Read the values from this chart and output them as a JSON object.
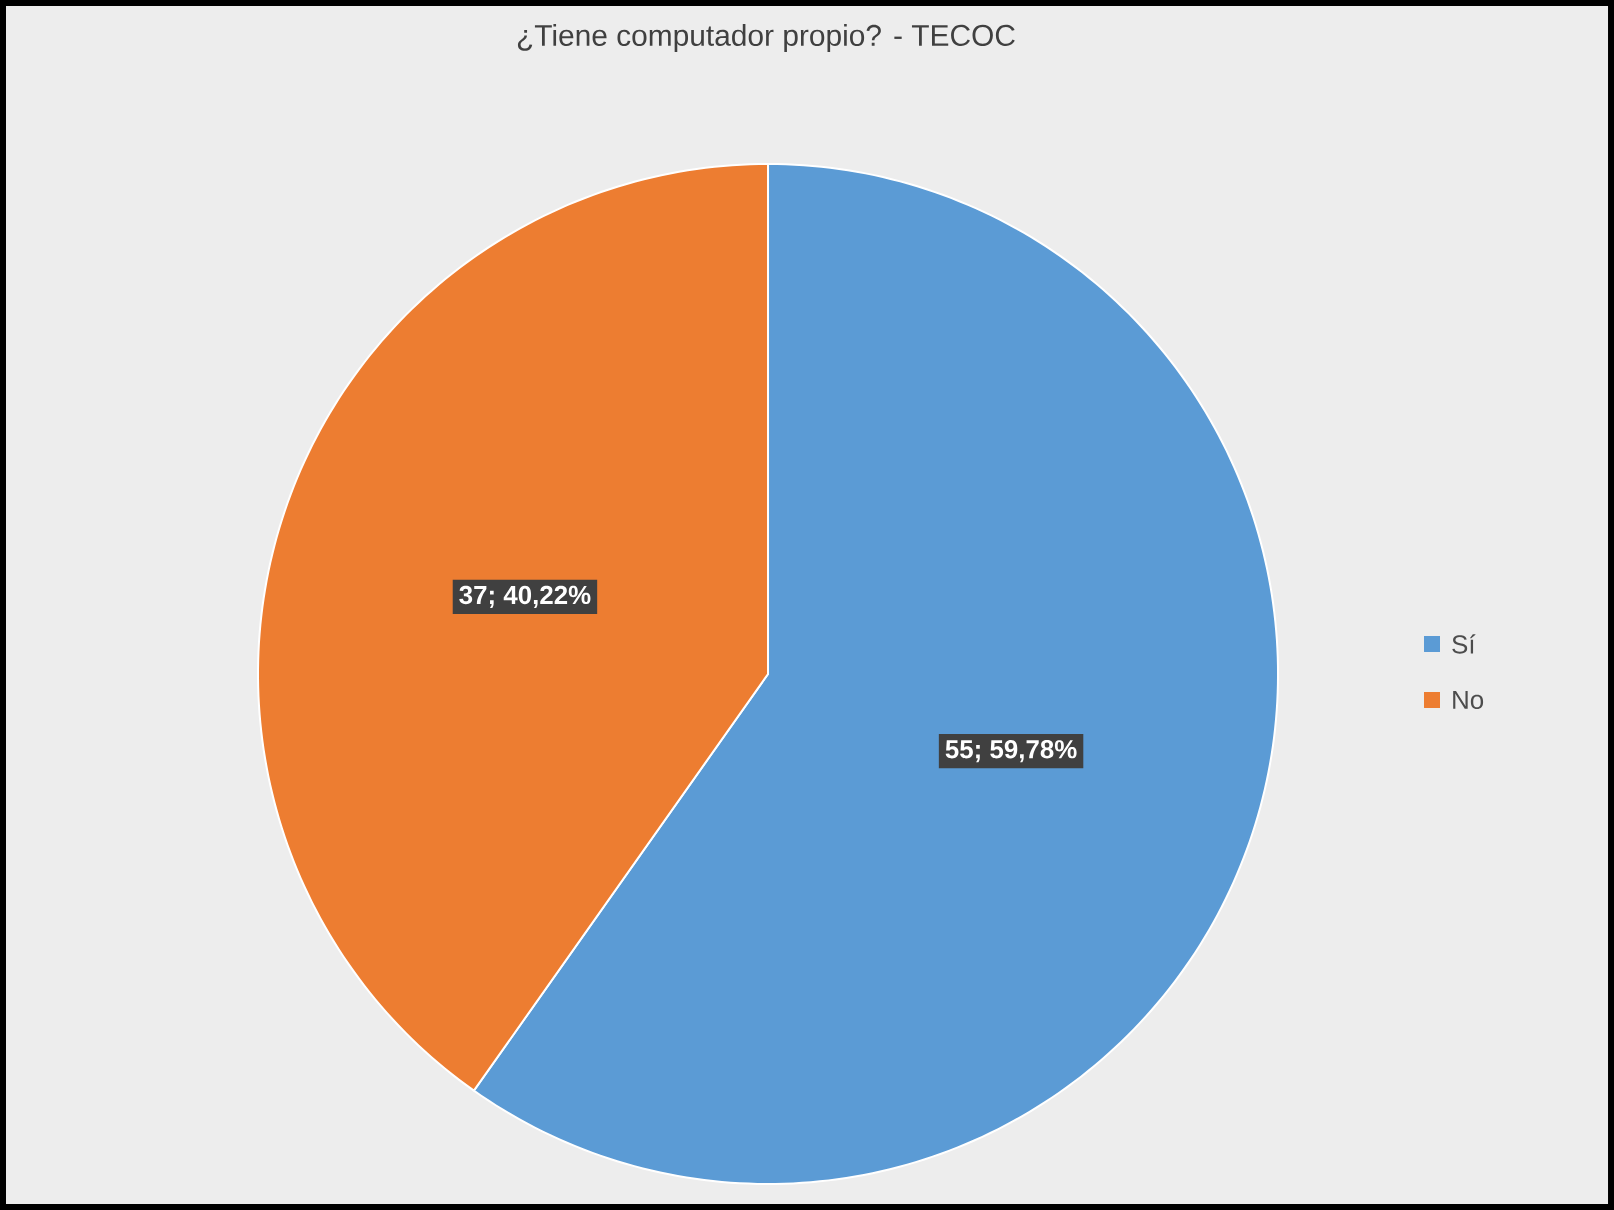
{
  "chart_data": {
    "type": "pie",
    "title": "¿Tiene computador propio? - TECOC",
    "categories": [
      "Sí",
      "No"
    ],
    "values": [
      55,
      37
    ],
    "colors": [
      "#5b9bd5",
      "#ed7d31"
    ],
    "value_labels": [
      "55; 59,78%",
      "37; 40,22%"
    ],
    "legend": "right"
  }
}
